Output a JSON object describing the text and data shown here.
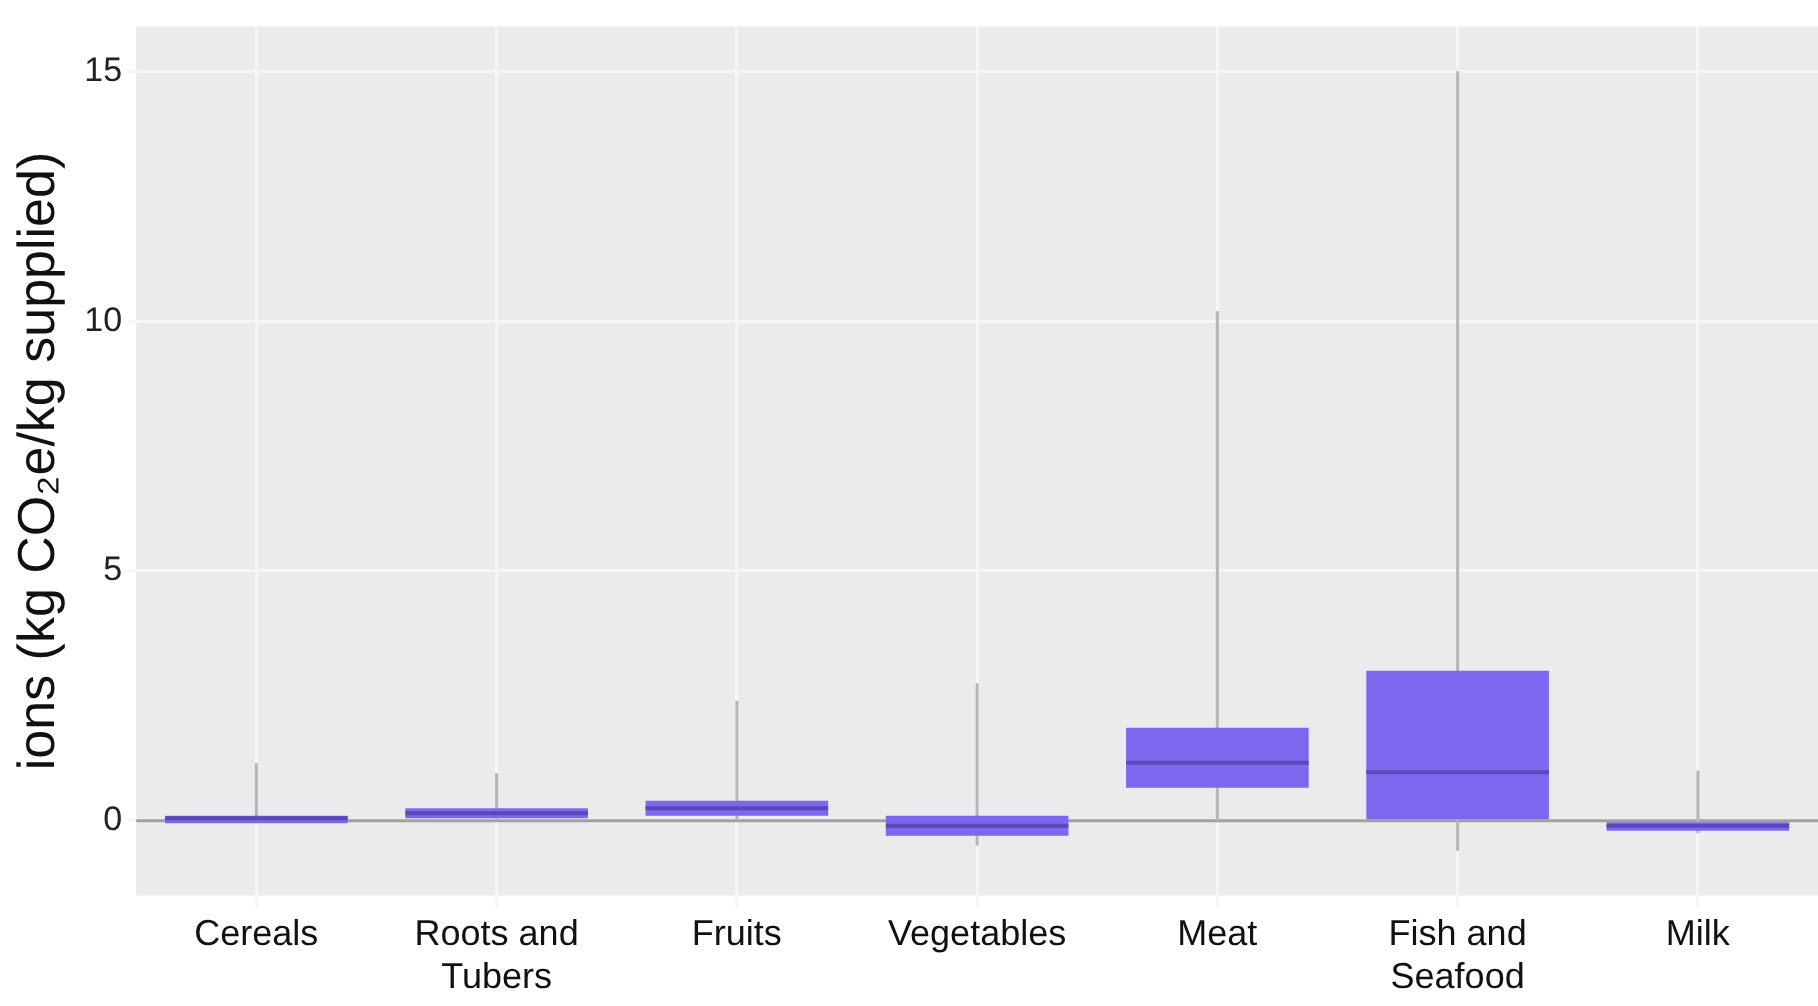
{
  "chart_data": {
    "type": "box",
    "ylabel": "ions (kg CO₂e/kg supplied)",
    "categories": [
      "Cereals",
      "Roots and Tubers",
      "Fruits",
      "Vegetables",
      "Meat",
      "Fish and Seafood",
      "Milk"
    ],
    "color": "#7b68ee",
    "boxes": [
      {
        "low": 0,
        "q1": -0.05,
        "median": 0.05,
        "q3": 0.1,
        "high": 1.15
      },
      {
        "low": 0,
        "q1": 0.05,
        "median": 0.15,
        "q3": 0.25,
        "high": 0.95
      },
      {
        "low": 0,
        "q1": 0.1,
        "median": 0.25,
        "q3": 0.4,
        "high": 2.4
      },
      {
        "low": -0.5,
        "q1": -0.3,
        "median": -0.1,
        "q3": 0.1,
        "high": 2.75
      },
      {
        "low": 0,
        "q1": 0.66,
        "median": 1.16,
        "q3": 1.86,
        "high": 10.2
      },
      {
        "low": -0.6,
        "q1": 0,
        "median": 0.97,
        "q3": 3.0,
        "high": 15
      },
      {
        "low": -0.25,
        "q1": -0.2,
        "median": -0.1,
        "q3": 0,
        "high": 1.0
      }
    ],
    "ylim": [
      -1.5,
      15.9
    ],
    "yticks": [
      0,
      5,
      10,
      15
    ],
    "grid": true,
    "legend": false,
    "ref_lines": [
      {
        "axis": "y",
        "value": 0,
        "color": "#a0a0a0"
      }
    ]
  }
}
